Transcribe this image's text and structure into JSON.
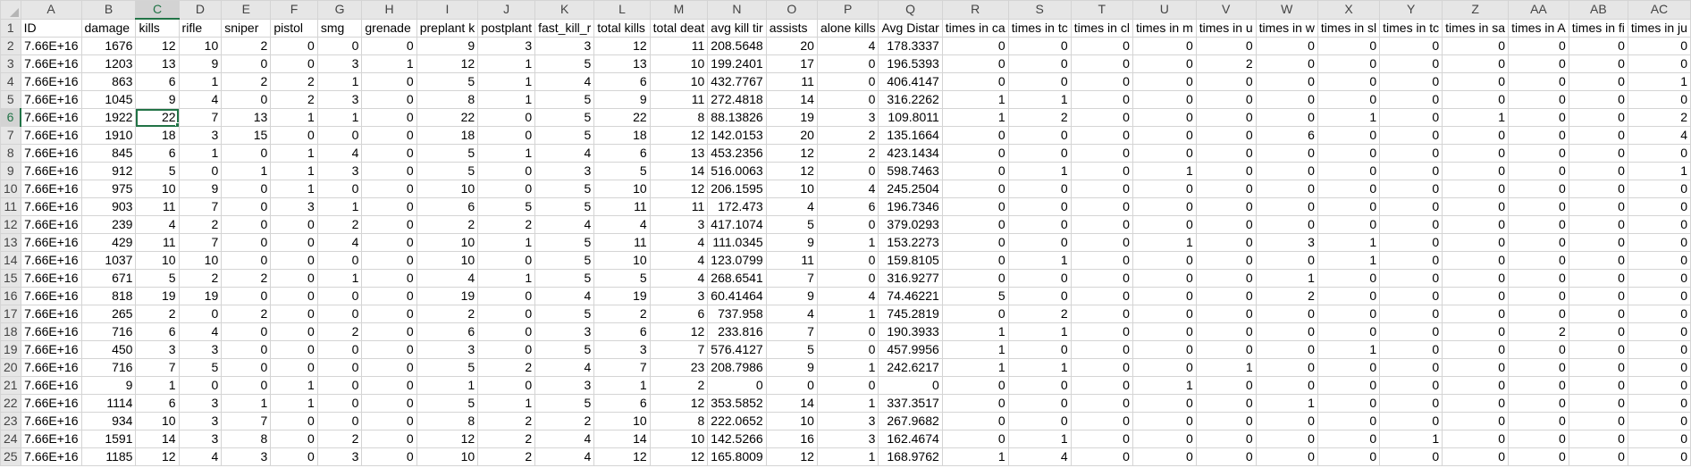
{
  "columns": [
    "A",
    "B",
    "C",
    "D",
    "E",
    "F",
    "G",
    "H",
    "I",
    "J",
    "K",
    "L",
    "M",
    "N",
    "O",
    "P",
    "Q",
    "R",
    "S",
    "T",
    "U",
    "V",
    "W",
    "X",
    "Y",
    "Z",
    "AA",
    "AB",
    "AC"
  ],
  "selected_column": "C",
  "selected_row": "6",
  "active_cell": "C6",
  "rows": [
    {
      "n": "1",
      "cells": [
        "ID",
        "damage",
        "kills",
        "rifle",
        "sniper",
        "pistol",
        "smg",
        "grenade",
        "preplant k",
        "postplant",
        "fast_kill_r",
        "total kills",
        "total deat",
        "avg kill tir",
        "assists",
        "alone kills",
        "Avg Distar",
        "times in ca",
        "times in tc",
        "times in cl",
        "times in m",
        "times in u",
        "times in w",
        "times in sl",
        "times in tc",
        "times in sa",
        "times in A",
        "times in fi",
        "times in ju"
      ]
    },
    {
      "n": "2",
      "cells": [
        "7.66E+16",
        "1676",
        "12",
        "10",
        "2",
        "0",
        "0",
        "0",
        "9",
        "3",
        "3",
        "12",
        "11",
        "208.5648",
        "20",
        "4",
        "178.3337",
        "0",
        "0",
        "0",
        "0",
        "0",
        "0",
        "0",
        "0",
        "0",
        "0",
        "0",
        "0"
      ]
    },
    {
      "n": "3",
      "cells": [
        "7.66E+16",
        "1203",
        "13",
        "9",
        "0",
        "0",
        "3",
        "1",
        "12",
        "1",
        "5",
        "13",
        "10",
        "199.2401",
        "17",
        "0",
        "196.5393",
        "0",
        "0",
        "0",
        "0",
        "2",
        "0",
        "0",
        "0",
        "0",
        "0",
        "0",
        "0"
      ]
    },
    {
      "n": "4",
      "cells": [
        "7.66E+16",
        "863",
        "6",
        "1",
        "2",
        "2",
        "1",
        "0",
        "5",
        "1",
        "4",
        "6",
        "10",
        "432.7767",
        "11",
        "0",
        "406.4147",
        "0",
        "0",
        "0",
        "0",
        "0",
        "0",
        "0",
        "0",
        "0",
        "0",
        "0",
        "1"
      ]
    },
    {
      "n": "5",
      "cells": [
        "7.66E+16",
        "1045",
        "9",
        "4",
        "0",
        "2",
        "3",
        "0",
        "8",
        "1",
        "5",
        "9",
        "11",
        "272.4818",
        "14",
        "0",
        "316.2262",
        "1",
        "1",
        "0",
        "0",
        "0",
        "0",
        "0",
        "0",
        "0",
        "0",
        "0",
        "0"
      ]
    },
    {
      "n": "6",
      "cells": [
        "7.66E+16",
        "1922",
        "22",
        "7",
        "13",
        "1",
        "1",
        "0",
        "22",
        "0",
        "5",
        "22",
        "8",
        "88.13826",
        "19",
        "3",
        "109.8011",
        "1",
        "2",
        "0",
        "0",
        "0",
        "0",
        "1",
        "0",
        "1",
        "0",
        "0",
        "2"
      ]
    },
    {
      "n": "7",
      "cells": [
        "7.66E+16",
        "1910",
        "18",
        "3",
        "15",
        "0",
        "0",
        "0",
        "18",
        "0",
        "5",
        "18",
        "12",
        "142.0153",
        "20",
        "2",
        "135.1664",
        "0",
        "0",
        "0",
        "0",
        "0",
        "6",
        "0",
        "0",
        "0",
        "0",
        "0",
        "4"
      ]
    },
    {
      "n": "8",
      "cells": [
        "7.66E+16",
        "845",
        "6",
        "1",
        "0",
        "1",
        "4",
        "0",
        "5",
        "1",
        "4",
        "6",
        "13",
        "453.2356",
        "12",
        "2",
        "423.1434",
        "0",
        "0",
        "0",
        "0",
        "0",
        "0",
        "0",
        "0",
        "0",
        "0",
        "0",
        "0"
      ]
    },
    {
      "n": "9",
      "cells": [
        "7.66E+16",
        "912",
        "5",
        "0",
        "1",
        "1",
        "3",
        "0",
        "5",
        "0",
        "3",
        "5",
        "14",
        "516.0063",
        "12",
        "0",
        "598.7463",
        "0",
        "1",
        "0",
        "1",
        "0",
        "0",
        "0",
        "0",
        "0",
        "0",
        "0",
        "1"
      ]
    },
    {
      "n": "10",
      "cells": [
        "7.66E+16",
        "975",
        "10",
        "9",
        "0",
        "1",
        "0",
        "0",
        "10",
        "0",
        "5",
        "10",
        "12",
        "206.1595",
        "10",
        "4",
        "245.2504",
        "0",
        "0",
        "0",
        "0",
        "0",
        "0",
        "0",
        "0",
        "0",
        "0",
        "0",
        "0"
      ]
    },
    {
      "n": "11",
      "cells": [
        "7.66E+16",
        "903",
        "11",
        "7",
        "0",
        "3",
        "1",
        "0",
        "6",
        "5",
        "5",
        "11",
        "11",
        "172.473",
        "4",
        "6",
        "196.7346",
        "0",
        "0",
        "0",
        "0",
        "0",
        "0",
        "0",
        "0",
        "0",
        "0",
        "0",
        "0"
      ]
    },
    {
      "n": "12",
      "cells": [
        "7.66E+16",
        "239",
        "4",
        "2",
        "0",
        "0",
        "2",
        "0",
        "2",
        "2",
        "4",
        "4",
        "3",
        "417.1074",
        "5",
        "0",
        "379.0293",
        "0",
        "0",
        "0",
        "0",
        "0",
        "0",
        "0",
        "0",
        "0",
        "0",
        "0",
        "0"
      ]
    },
    {
      "n": "13",
      "cells": [
        "7.66E+16",
        "429",
        "11",
        "7",
        "0",
        "0",
        "4",
        "0",
        "10",
        "1",
        "5",
        "11",
        "4",
        "111.0345",
        "9",
        "1",
        "153.2273",
        "0",
        "0",
        "0",
        "1",
        "0",
        "3",
        "1",
        "0",
        "0",
        "0",
        "0",
        "0"
      ]
    },
    {
      "n": "14",
      "cells": [
        "7.66E+16",
        "1037",
        "10",
        "10",
        "0",
        "0",
        "0",
        "0",
        "10",
        "0",
        "5",
        "10",
        "4",
        "123.0799",
        "11",
        "0",
        "159.8105",
        "0",
        "1",
        "0",
        "0",
        "0",
        "0",
        "1",
        "0",
        "0",
        "0",
        "0",
        "0"
      ]
    },
    {
      "n": "15",
      "cells": [
        "7.66E+16",
        "671",
        "5",
        "2",
        "2",
        "0",
        "1",
        "0",
        "4",
        "1",
        "5",
        "5",
        "4",
        "268.6541",
        "7",
        "0",
        "316.9277",
        "0",
        "0",
        "0",
        "0",
        "0",
        "1",
        "0",
        "0",
        "0",
        "0",
        "0",
        "0"
      ]
    },
    {
      "n": "16",
      "cells": [
        "7.66E+16",
        "818",
        "19",
        "19",
        "0",
        "0",
        "0",
        "0",
        "19",
        "0",
        "4",
        "19",
        "3",
        "60.41464",
        "9",
        "4",
        "74.46221",
        "5",
        "0",
        "0",
        "0",
        "0",
        "2",
        "0",
        "0",
        "0",
        "0",
        "0",
        "0"
      ]
    },
    {
      "n": "17",
      "cells": [
        "7.66E+16",
        "265",
        "2",
        "0",
        "2",
        "0",
        "0",
        "0",
        "2",
        "0",
        "5",
        "2",
        "6",
        "737.958",
        "4",
        "1",
        "745.2819",
        "0",
        "2",
        "0",
        "0",
        "0",
        "0",
        "0",
        "0",
        "0",
        "0",
        "0",
        "0"
      ]
    },
    {
      "n": "18",
      "cells": [
        "7.66E+16",
        "716",
        "6",
        "4",
        "0",
        "0",
        "2",
        "0",
        "6",
        "0",
        "3",
        "6",
        "12",
        "233.816",
        "7",
        "0",
        "190.3933",
        "1",
        "1",
        "0",
        "0",
        "0",
        "0",
        "0",
        "0",
        "0",
        "2",
        "0",
        "0"
      ]
    },
    {
      "n": "19",
      "cells": [
        "7.66E+16",
        "450",
        "3",
        "3",
        "0",
        "0",
        "0",
        "0",
        "3",
        "0",
        "5",
        "3",
        "7",
        "576.4127",
        "5",
        "0",
        "457.9956",
        "1",
        "0",
        "0",
        "0",
        "0",
        "0",
        "1",
        "0",
        "0",
        "0",
        "0",
        "0"
      ]
    },
    {
      "n": "20",
      "cells": [
        "7.66E+16",
        "716",
        "7",
        "5",
        "0",
        "0",
        "0",
        "0",
        "5",
        "2",
        "4",
        "7",
        "23",
        "208.7986",
        "9",
        "1",
        "242.6217",
        "1",
        "1",
        "0",
        "0",
        "1",
        "0",
        "0",
        "0",
        "0",
        "0",
        "0",
        "0"
      ]
    },
    {
      "n": "21",
      "cells": [
        "7.66E+16",
        "9",
        "1",
        "0",
        "0",
        "1",
        "0",
        "0",
        "1",
        "0",
        "3",
        "1",
        "2",
        "0",
        "0",
        "0",
        "0",
        "0",
        "0",
        "0",
        "1",
        "0",
        "0",
        "0",
        "0",
        "0",
        "0",
        "0",
        "0"
      ]
    },
    {
      "n": "22",
      "cells": [
        "7.66E+16",
        "1114",
        "6",
        "3",
        "1",
        "1",
        "0",
        "0",
        "5",
        "1",
        "5",
        "6",
        "12",
        "353.5852",
        "14",
        "1",
        "337.3517",
        "0",
        "0",
        "0",
        "0",
        "0",
        "1",
        "0",
        "0",
        "0",
        "0",
        "0",
        "0"
      ]
    },
    {
      "n": "23",
      "cells": [
        "7.66E+16",
        "934",
        "10",
        "3",
        "7",
        "0",
        "0",
        "0",
        "8",
        "2",
        "2",
        "10",
        "8",
        "222.0652",
        "10",
        "3",
        "267.9682",
        "0",
        "0",
        "0",
        "0",
        "0",
        "0",
        "0",
        "0",
        "0",
        "0",
        "0",
        "0"
      ]
    },
    {
      "n": "24",
      "cells": [
        "7.66E+16",
        "1591",
        "14",
        "3",
        "8",
        "0",
        "2",
        "0",
        "12",
        "2",
        "4",
        "14",
        "10",
        "142.5266",
        "16",
        "3",
        "162.4674",
        "0",
        "1",
        "0",
        "0",
        "0",
        "0",
        "0",
        "1",
        "0",
        "0",
        "0",
        "0"
      ]
    },
    {
      "n": "25",
      "cells": [
        "7.66E+16",
        "1185",
        "12",
        "4",
        "3",
        "0",
        "3",
        "0",
        "10",
        "2",
        "4",
        "12",
        "12",
        "165.8009",
        "12",
        "1",
        "168.9762",
        "1",
        "4",
        "0",
        "0",
        "0",
        "0",
        "0",
        "0",
        "0",
        "0",
        "0",
        "0"
      ]
    }
  ]
}
